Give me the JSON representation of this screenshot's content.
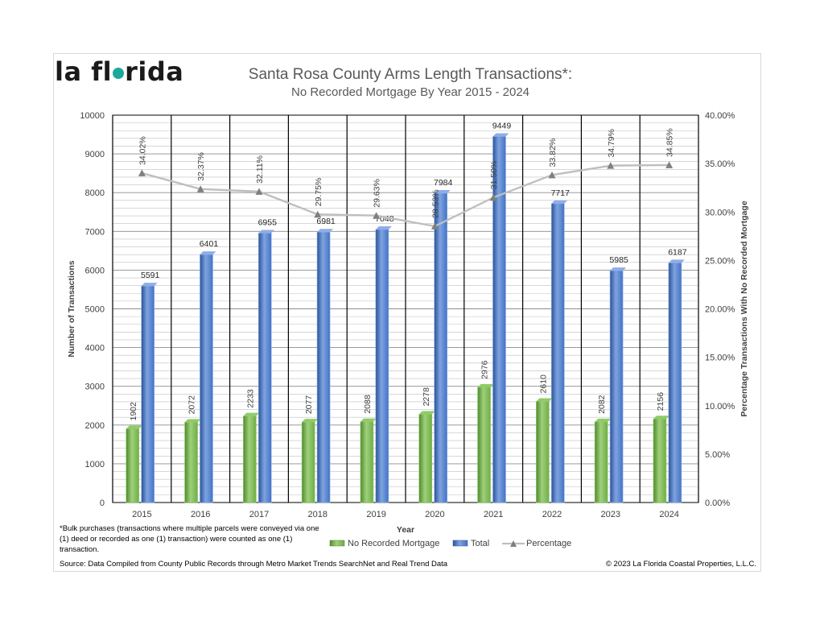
{
  "header": {
    "logo_pre": "la fl",
    "logo_post": "rida",
    "title": "Santa Rosa County Arms Length Transactions*:",
    "subtitle": "No Recorded Mortgage By Year 2015 - 2024"
  },
  "footer": {
    "footnote": "*Bulk purchases (transactions where multiple parcels were conveyed via one (1) deed or recorded as one (1) transaction) were counted as one (1) transaction.",
    "source": "Source:  Data Compiled from County Public Records through Metro Market Trends SearchNet and Real Trend Data",
    "copyright": "© 2023 La Florida Coastal Properties, L.L.C."
  },
  "colors": {
    "no_mortgage": "#70ad47",
    "total": "#4472c4",
    "percentage": "#bfbfbf",
    "percentage_marker": "#7f7f7f",
    "logo_accent": "#1ba99a"
  },
  "chart_data": {
    "type": "bar",
    "categories": [
      "2015",
      "2016",
      "2017",
      "2018",
      "2019",
      "2020",
      "2021",
      "2022",
      "2023",
      "2024"
    ],
    "series": [
      {
        "name": "No Recorded Mortgage",
        "type": "bar",
        "axis": "left",
        "values": [
          1902,
          2072,
          2233,
          2077,
          2088,
          2278,
          2976,
          2610,
          2082,
          2156
        ],
        "labels": [
          "1902",
          "2072",
          "2233",
          "2077",
          "2088",
          "2278",
          "2976",
          "2610",
          "2082",
          "2156"
        ]
      },
      {
        "name": "Total",
        "type": "bar",
        "axis": "left",
        "values": [
          5591,
          6401,
          6955,
          6981,
          7048,
          7984,
          9449,
          7717,
          5985,
          6187
        ],
        "labels": [
          "5591",
          "6401",
          "6955",
          "6981",
          "7048",
          "7984",
          "9449",
          "7717",
          "5985",
          "6187"
        ]
      },
      {
        "name": "Percentage",
        "type": "line",
        "axis": "right",
        "values": [
          34.02,
          32.37,
          32.11,
          29.75,
          29.63,
          28.53,
          31.5,
          33.82,
          34.79,
          34.85
        ],
        "labels": [
          "34.02%",
          "32.37%",
          "32.11%",
          "29.75%",
          "29.63%",
          "28.53%",
          "31.50%",
          "33.82%",
          "34.79%",
          "34.85%"
        ]
      }
    ],
    "xlabel": "Year",
    "ylabel": "Number of Transactions",
    "y2label": "Percentage Transactions With No Recorded Mortgage",
    "ylim": [
      0,
      10000
    ],
    "y2lim": [
      0,
      40
    ],
    "yticks": [
      "0",
      "1000",
      "2000",
      "3000",
      "4000",
      "5000",
      "6000",
      "7000",
      "8000",
      "9000",
      "10000"
    ],
    "y2ticks": [
      "0.00%",
      "5.00%",
      "10.00%",
      "15.00%",
      "20.00%",
      "25.00%",
      "30.00%",
      "35.00%",
      "40.00%"
    ],
    "grid": true,
    "legend": "bottom"
  }
}
